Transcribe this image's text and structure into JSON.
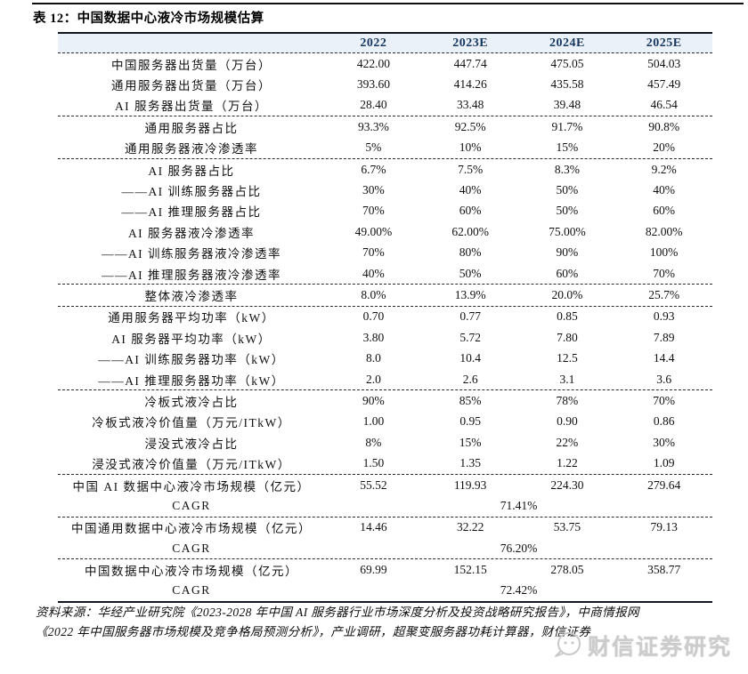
{
  "page": {
    "title": "表 12：中国数据中心液冷市场规模估算",
    "source_line1": "资料来源：华经产业研究院《2023-2028 年中国 AI 服务器行业市场深度分析及投资战略研究报告》，中商情报网",
    "source_line2": "《2022 年中国服务器市场规模及竞争格局预测分析》，产业调研，超聚变服务器功耗计算器，财信证券",
    "watermark": {
      "label": "财信证券研究",
      "icon": "chat-bubble-logo-icon",
      "color": "#cccccc"
    },
    "colors": {
      "header_bg": "#eaf1f9",
      "header_text": "#17365d",
      "rule": "#10151f",
      "dash": "#2a2a2a"
    }
  },
  "chart_data": {
    "type": "table",
    "title": "表 12：中国数据中心液冷市场规模估算",
    "columns": [
      "",
      "2022",
      "2023E",
      "2024E",
      "2025E"
    ],
    "sections": [
      {
        "rows": [
          {
            "label": "中国服务器出货量（万台）",
            "values": [
              "422.00",
              "447.74",
              "475.05",
              "504.03"
            ]
          },
          {
            "label": "通用服务器出货量（万台）",
            "values": [
              "393.60",
              "414.26",
              "435.58",
              "457.49"
            ]
          },
          {
            "label": "AI 服务器出货量（万台）",
            "values": [
              "28.40",
              "33.48",
              "39.48",
              "46.54"
            ]
          }
        ]
      },
      {
        "rows": [
          {
            "label": "通用服务器占比",
            "values": [
              "93.3%",
              "92.5%",
              "91.7%",
              "90.8%"
            ]
          },
          {
            "label": "通用服务器液冷渗透率",
            "values": [
              "5%",
              "10%",
              "15%",
              "20%"
            ]
          }
        ]
      },
      {
        "rows": [
          {
            "label": "AI 服务器占比",
            "values": [
              "6.7%",
              "7.5%",
              "8.3%",
              "9.2%"
            ]
          },
          {
            "label": "——AI 训练服务器占比",
            "values": [
              "30%",
              "40%",
              "50%",
              "40%"
            ]
          },
          {
            "label": "——AI 推理服务器占比",
            "values": [
              "70%",
              "60%",
              "50%",
              "60%"
            ]
          },
          {
            "label": "AI 服务器液冷渗透率",
            "values": [
              "49.00%",
              "62.00%",
              "75.00%",
              "82.00%"
            ]
          },
          {
            "label": "——AI 训练服务器液冷渗透率",
            "values": [
              "70%",
              "80%",
              "90%",
              "100%"
            ]
          },
          {
            "label": "——AI 推理服务器液冷渗透率",
            "values": [
              "40%",
              "50%",
              "60%",
              "70%"
            ]
          }
        ]
      },
      {
        "rows": [
          {
            "label": "整体液冷渗透率",
            "values": [
              "8.0%",
              "13.9%",
              "20.0%",
              "25.7%"
            ]
          }
        ]
      },
      {
        "rows": [
          {
            "label": "通用服务器平均功率（kW）",
            "values": [
              "0.70",
              "0.77",
              "0.85",
              "0.93"
            ]
          },
          {
            "label": "AI 服务器平均功率（kW）",
            "values": [
              "3.80",
              "5.72",
              "7.80",
              "7.89"
            ]
          },
          {
            "label": "——AI 训练服务器功率（kW）",
            "values": [
              "8.0",
              "10.4",
              "12.5",
              "14.4"
            ]
          },
          {
            "label": "——AI 推理服务器功率（kW）",
            "values": [
              "2.0",
              "2.6",
              "3.1",
              "3.6"
            ]
          }
        ]
      },
      {
        "rows": [
          {
            "label": "冷板式液冷占比",
            "values": [
              "90%",
              "85%",
              "78%",
              "70%"
            ]
          },
          {
            "label": "冷板式液冷价值量（万元/ITkW）",
            "values": [
              "1.00",
              "0.95",
              "0.90",
              "0.86"
            ]
          },
          {
            "label": "浸没式液冷占比",
            "values": [
              "8%",
              "15%",
              "22%",
              "30%"
            ]
          },
          {
            "label": "浸没式液冷价值量（万元/ITkW）",
            "values": [
              "1.50",
              "1.35",
              "1.22",
              "1.09"
            ]
          }
        ]
      },
      {
        "rows": [
          {
            "label": "中国 AI 数据中心液冷市场规模（亿元）",
            "values": [
              "55.52",
              "119.93",
              "224.30",
              "279.64"
            ]
          },
          {
            "label": "CAGR",
            "span_value": "71.41%"
          }
        ]
      },
      {
        "rows": [
          {
            "label": "中国通用数据中心液冷市场规模（亿元）",
            "values": [
              "14.46",
              "32.22",
              "53.75",
              "79.13"
            ]
          },
          {
            "label": "CAGR",
            "span_value": "76.20%"
          }
        ]
      },
      {
        "rows": [
          {
            "label": "中国数据中心液冷市场规模（亿元）",
            "values": [
              "69.99",
              "152.15",
              "278.05",
              "358.77"
            ]
          },
          {
            "label": "CAGR",
            "span_value": "72.42%"
          }
        ]
      }
    ]
  }
}
